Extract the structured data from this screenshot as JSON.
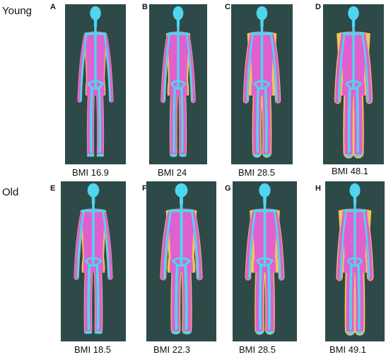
{
  "rows": [
    {
      "label": "Young",
      "panels": [
        {
          "letter": "A",
          "bmi": "BMI 16.9",
          "fat_level": 0.0
        },
        {
          "letter": "B",
          "bmi": "BMI 24",
          "fat_level": 0.25
        },
        {
          "letter": "C",
          "bmi": "BMI 28.5",
          "fat_level": 0.6
        },
        {
          "letter": "D",
          "bmi": "BMI 48.1",
          "fat_level": 1.0
        }
      ]
    },
    {
      "label": "Old",
      "panels": [
        {
          "letter": "E",
          "bmi": "BMI 18.5",
          "fat_level": 0.15
        },
        {
          "letter": "F",
          "bmi": "BMI 22.3",
          "fat_level": 0.4
        },
        {
          "letter": "G",
          "bmi": "BMI 28.5",
          "fat_level": 0.55
        },
        {
          "letter": "H",
          "bmi": "BMI 49.1",
          "fat_level": 1.0
        }
      ]
    }
  ],
  "colors": {
    "background": "#2d4a49",
    "bone": "#4fd6ee",
    "lean": "#e060d0",
    "fat": "#f0c65a"
  }
}
